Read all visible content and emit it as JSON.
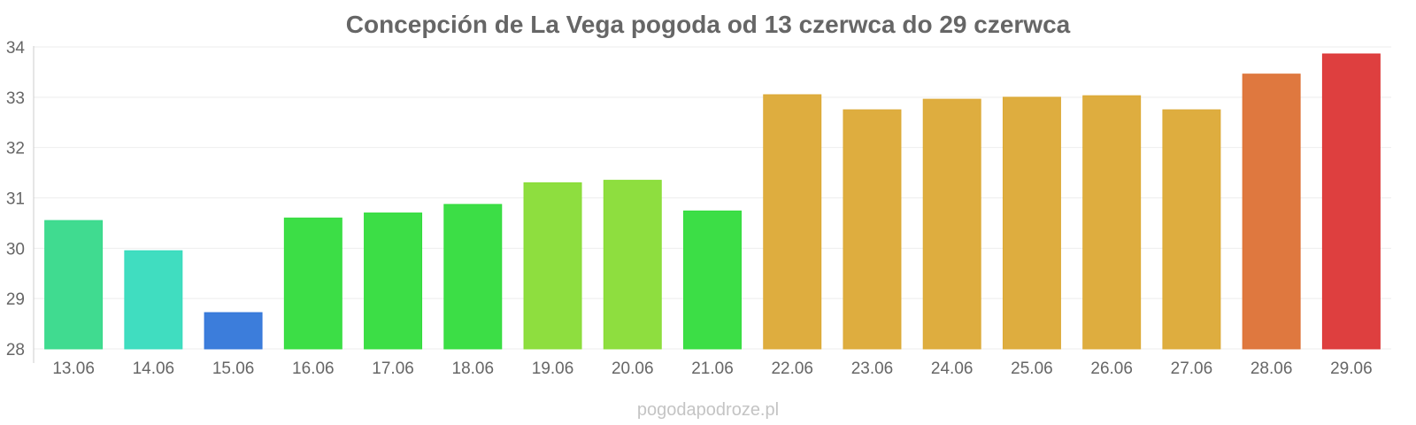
{
  "chart_data": {
    "type": "bar",
    "title": "Concepción de La Vega pogoda od 13 czerwca do 29 czerwca",
    "categories": [
      "13.06",
      "14.06",
      "15.06",
      "16.06",
      "17.06",
      "18.06",
      "19.06",
      "20.06",
      "21.06",
      "22.06",
      "23.06",
      "24.06",
      "25.06",
      "26.06",
      "27.06",
      "28.06",
      "29.06"
    ],
    "values": [
      30.55,
      29.95,
      28.72,
      30.6,
      30.7,
      30.87,
      31.3,
      31.35,
      30.74,
      33.05,
      32.75,
      32.96,
      33.0,
      33.03,
      32.75,
      33.46,
      33.86
    ],
    "colors": [
      "#36d98a",
      "#36dbbd",
      "#3276d9",
      "#32dc3c",
      "#32dc3c",
      "#32dc3c",
      "#88dc35",
      "#88dc35",
      "#32dc3c",
      "#dca935",
      "#dca935",
      "#dca935",
      "#dca935",
      "#dca935",
      "#dca935",
      "#dd7135",
      "#dc3535"
    ],
    "ylim": [
      28,
      34
    ],
    "yticks": [
      "28",
      "29",
      "30",
      "31",
      "32",
      "33",
      "34"
    ],
    "xlabel": "",
    "ylabel": "",
    "grid": true,
    "legend": "none"
  },
  "credit": "pogodapodroze.pl"
}
